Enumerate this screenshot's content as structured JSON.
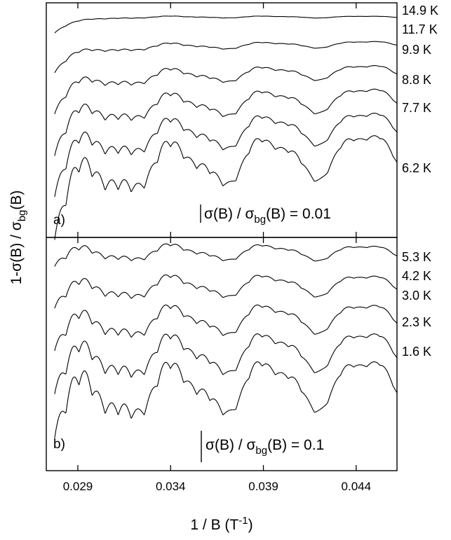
{
  "chart_data": {
    "type": "line",
    "xlabel": "1 / B (T",
    "xlabel_sup": "-1",
    "xlabel_close": ")",
    "ylabel": "1-σ(B) / σ",
    "ylabel_sub": "bg",
    "ylabel_end": "(B)",
    "xlim": [
      0.0273,
      0.0462
    ],
    "x_ticks": [
      0.029,
      0.034,
      0.039,
      0.044
    ],
    "x_tick_labels": [
      "0.029",
      "0.034",
      "0.039",
      "0.044"
    ],
    "grid": false,
    "panels": [
      {
        "label": "a)",
        "scale_bar_prefix": "σ(B) / σ",
        "scale_bar_sub": "bg",
        "scale_bar_suffix": "(B) = 0.01",
        "series": [
          {
            "name": "14.9 K",
            "temperature_K": 14.9,
            "offset": 0.4,
            "amp": 0.06
          },
          {
            "name": "11.7 K",
            "temperature_K": 11.7,
            "offset": 0.36,
            "amp": 0.2
          },
          {
            "name": "9.9 K",
            "temperature_K": 9.9,
            "offset": 0.315,
            "amp": 0.45
          },
          {
            "name": "8.8 K",
            "temperature_K": 8.8,
            "offset": 0.25,
            "amp": 0.75
          },
          {
            "name": "7.7 K",
            "temperature_K": 7.7,
            "offset": 0.19,
            "amp": 1.0
          },
          {
            "name": "6.2 K",
            "temperature_K": 6.2,
            "offset": 0.1,
            "amp": 1.4
          }
        ]
      },
      {
        "label": "b)",
        "scale_bar_prefix": "σ(B) / σ",
        "scale_bar_sub": "bg",
        "scale_bar_suffix": "(B) = 0.1",
        "series": [
          {
            "name": "5.3 K",
            "temperature_K": 5.3,
            "offset": 0.8,
            "amp": 0.4
          },
          {
            "name": "4.2 K",
            "temperature_K": 4.2,
            "offset": 0.76,
            "amp": 0.55
          },
          {
            "name": "3.0 K",
            "temperature_K": 3.0,
            "offset": 0.71,
            "amp": 0.75
          },
          {
            "name": "2.3 K",
            "temperature_K": 2.3,
            "offset": 0.65,
            "amp": 1.0
          },
          {
            "name": "1.6 K",
            "temperature_K": 1.6,
            "offset": 0.59,
            "amp": 1.3
          }
        ]
      }
    ]
  }
}
